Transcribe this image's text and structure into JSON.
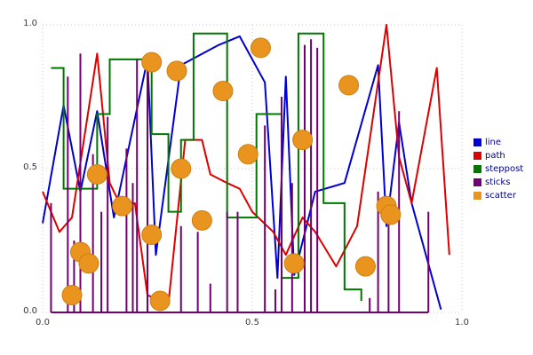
{
  "figure": {
    "background": "#ffffff"
  },
  "chart_data": {
    "type": [
      "line",
      "line",
      "step",
      "sticks",
      "scatter"
    ],
    "title": "",
    "xlabel": "",
    "ylabel": "",
    "xlim": [
      0.0,
      1.0
    ],
    "ylim": [
      0.0,
      1.0
    ],
    "x_ticks": [
      0.0,
      0.5,
      1.0
    ],
    "y_ticks": [
      0.0,
      0.5,
      1.0
    ],
    "x_tick_labels": [
      "0.0",
      "0.5",
      "1.0"
    ],
    "y_tick_labels": [
      "0.0",
      "0.5",
      "1.0"
    ],
    "grid": "dotted-at-ticks",
    "legend_position": "right-outside",
    "legend_text_color": "#00008b",
    "series": [
      {
        "name": "line",
        "type": "line",
        "color": "#0000d0",
        "points": [
          [
            0.0,
            0.31
          ],
          [
            0.05,
            0.72
          ],
          [
            0.09,
            0.42
          ],
          [
            0.13,
            0.7
          ],
          [
            0.17,
            0.33
          ],
          [
            0.25,
            0.88
          ],
          [
            0.27,
            0.2
          ],
          [
            0.33,
            0.86
          ],
          [
            0.42,
            0.93
          ],
          [
            0.47,
            0.96
          ],
          [
            0.53,
            0.8
          ],
          [
            0.56,
            0.12
          ],
          [
            0.58,
            0.82
          ],
          [
            0.6,
            0.13
          ],
          [
            0.65,
            0.42
          ],
          [
            0.72,
            0.45
          ],
          [
            0.8,
            0.86
          ],
          [
            0.82,
            0.3
          ],
          [
            0.85,
            0.66
          ],
          [
            0.88,
            0.38
          ],
          [
            0.95,
            0.01
          ]
        ]
      },
      {
        "name": "path",
        "type": "line",
        "color": "#dd0000",
        "points": [
          [
            0.0,
            0.42
          ],
          [
            0.04,
            0.28
          ],
          [
            0.07,
            0.33
          ],
          [
            0.13,
            0.9
          ],
          [
            0.16,
            0.45
          ],
          [
            0.19,
            0.36
          ],
          [
            0.22,
            0.38
          ],
          [
            0.25,
            0.06
          ],
          [
            0.3,
            0.03
          ],
          [
            0.34,
            0.6
          ],
          [
            0.38,
            0.6
          ],
          [
            0.4,
            0.48
          ],
          [
            0.44,
            0.45
          ],
          [
            0.47,
            0.43
          ],
          [
            0.5,
            0.35
          ],
          [
            0.55,
            0.28
          ],
          [
            0.58,
            0.2
          ],
          [
            0.62,
            0.33
          ],
          [
            0.65,
            0.28
          ],
          [
            0.7,
            0.16
          ],
          [
            0.75,
            0.3
          ],
          [
            0.82,
            1.0
          ],
          [
            0.85,
            0.54
          ],
          [
            0.88,
            0.38
          ],
          [
            0.94,
            0.85
          ],
          [
            0.97,
            0.2
          ]
        ]
      },
      {
        "name": "steppost",
        "type": "step-post",
        "color": "#007700",
        "points": [
          [
            0.02,
            0.85
          ],
          [
            0.05,
            0.43
          ],
          [
            0.13,
            0.69
          ],
          [
            0.16,
            0.88
          ],
          [
            0.26,
            0.62
          ],
          [
            0.3,
            0.35
          ],
          [
            0.33,
            0.6
          ],
          [
            0.36,
            0.97
          ],
          [
            0.44,
            0.33
          ],
          [
            0.51,
            0.69
          ],
          [
            0.57,
            0.12
          ],
          [
            0.61,
            0.97
          ],
          [
            0.67,
            0.38
          ],
          [
            0.72,
            0.08
          ],
          [
            0.76,
            0.04
          ]
        ]
      },
      {
        "name": "sticks",
        "type": "sticks",
        "color": "#730073",
        "baseline": 0.0,
        "points": [
          [
            0.02,
            0.38
          ],
          [
            0.06,
            0.82
          ],
          [
            0.075,
            0.25
          ],
          [
            0.09,
            0.9
          ],
          [
            0.12,
            0.55
          ],
          [
            0.14,
            0.35
          ],
          [
            0.155,
            0.68
          ],
          [
            0.2,
            0.57
          ],
          [
            0.215,
            0.45
          ],
          [
            0.225,
            0.88
          ],
          [
            0.25,
            0.88
          ],
          [
            0.33,
            0.3
          ],
          [
            0.37,
            0.28
          ],
          [
            0.4,
            0.1
          ],
          [
            0.44,
            0.35
          ],
          [
            0.465,
            0.35
          ],
          [
            0.53,
            0.65
          ],
          [
            0.555,
            0.08
          ],
          [
            0.57,
            0.75
          ],
          [
            0.595,
            0.45
          ],
          [
            0.625,
            0.93
          ],
          [
            0.64,
            0.95
          ],
          [
            0.655,
            0.92
          ],
          [
            0.78,
            0.05
          ],
          [
            0.8,
            0.42
          ],
          [
            0.825,
            0.35
          ],
          [
            0.85,
            0.7
          ],
          [
            0.92,
            0.35
          ]
        ]
      },
      {
        "name": "scatter",
        "type": "scatter",
        "color": "#e8941f",
        "edge_color": "#d07f10",
        "marker_radius": 11,
        "points": [
          [
            0.07,
            0.06
          ],
          [
            0.09,
            0.21
          ],
          [
            0.11,
            0.17
          ],
          [
            0.13,
            0.48
          ],
          [
            0.19,
            0.37
          ],
          [
            0.26,
            0.87
          ],
          [
            0.26,
            0.27
          ],
          [
            0.28,
            0.04
          ],
          [
            0.32,
            0.84
          ],
          [
            0.33,
            0.5
          ],
          [
            0.38,
            0.32
          ],
          [
            0.43,
            0.77
          ],
          [
            0.49,
            0.55
          ],
          [
            0.52,
            0.92
          ],
          [
            0.6,
            0.17
          ],
          [
            0.62,
            0.6
          ],
          [
            0.73,
            0.79
          ],
          [
            0.77,
            0.16
          ],
          [
            0.82,
            0.37
          ],
          [
            0.83,
            0.34
          ]
        ]
      }
    ]
  }
}
